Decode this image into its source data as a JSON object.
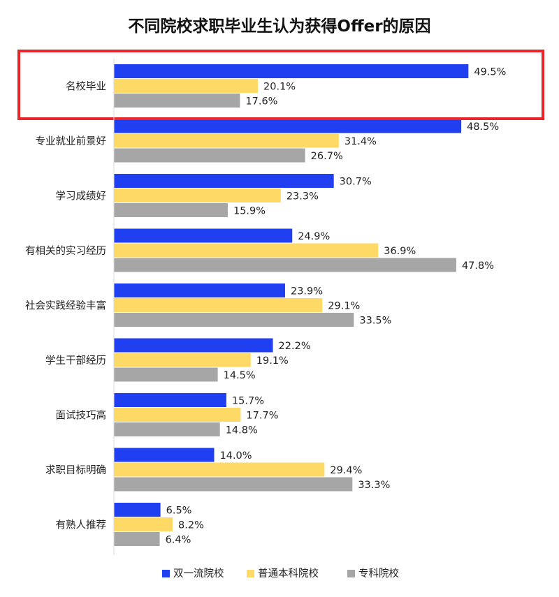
{
  "chart_data": {
    "type": "bar",
    "orientation": "horizontal",
    "title": "不同院校求职毕业生认为获得Offer的原因",
    "categories": [
      "名校毕业",
      "专业就业前景好",
      "学习成绩好",
      "有相关的实习经历",
      "社会实践经验丰富",
      "学生干部经历",
      "面试技巧高",
      "求职目标明确",
      "有熟人推荐"
    ],
    "series": [
      {
        "name": "双一流院校",
        "color": "#1f3ff0",
        "values": [
          49.5,
          48.5,
          30.7,
          24.9,
          23.9,
          22.2,
          15.7,
          14.0,
          6.5
        ],
        "labels": [
          "49.5%",
          "48.5%",
          "30.7%",
          "24.9%",
          "23.9%",
          "22.2%",
          "15.7%",
          "14.0%",
          "6.5%"
        ]
      },
      {
        "name": "普通本科院校",
        "color": "#ffd966",
        "values": [
          20.1,
          31.4,
          23.3,
          36.9,
          29.1,
          19.1,
          17.7,
          29.4,
          8.2
        ],
        "labels": [
          "20.1%",
          "31.4%",
          "23.3%",
          "36.9%",
          "29.1%",
          "19.1%",
          "17.7%",
          "29.4%",
          "8.2%"
        ]
      },
      {
        "name": "专科院校",
        "color": "#a6a6a6",
        "values": [
          17.6,
          26.7,
          15.9,
          47.8,
          33.5,
          14.5,
          14.8,
          33.3,
          6.4
        ],
        "labels": [
          "17.6%",
          "26.7%",
          "15.9%",
          "47.8%",
          "33.5%",
          "14.5%",
          "14.8%",
          "33.3%",
          "6.4%"
        ]
      }
    ],
    "xlim": [
      0,
      50
    ],
    "xlabel": "",
    "ylabel": "",
    "grid": false,
    "legend": "bottom",
    "highlight": {
      "category": "名校毕业",
      "color": "#e8262a"
    }
  }
}
